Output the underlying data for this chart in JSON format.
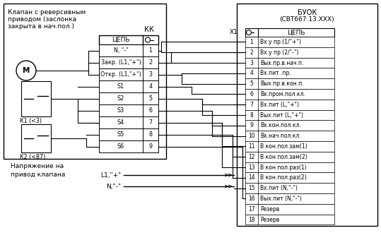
{
  "title_left_line1": "Клапан с реверсивным",
  "title_left_line2": "приводом (заслонка",
  "title_left_line3": "закрыта в нач.пол.)",
  "title_right_line1": "БУОК",
  "title_right_line2": "(СВТ667.13.ХХХ)",
  "kk_label": "КК",
  "x1_label": "Х1",
  "left_header": "ЦЕПЬ",
  "right_header": "ЦЕПЬ",
  "left_rows": [
    [
      "N, \"-\"",
      "1"
    ],
    [
      "Закр. (L1,\"+\")",
      "2"
    ],
    [
      "Откр. (L1,\"+\")",
      "3"
    ],
    [
      "S1",
      "4"
    ],
    [
      "S2",
      "5"
    ],
    [
      "S3",
      "6"
    ],
    [
      "S4",
      "7"
    ],
    [
      "S5",
      "8"
    ],
    [
      "S6",
      "9"
    ]
  ],
  "right_rows": [
    [
      "1",
      "Вх.у пр.(1/\"+\")"
    ],
    [
      "2",
      "Вх.у пр.(2/\"-\")"
    ],
    [
      "3",
      "Вых.пр.в.нач.п."
    ],
    [
      "4",
      "Вх.пит .пр."
    ],
    [
      "5",
      "Вых.пр.в.кон.п."
    ],
    [
      "6",
      "Вх.пром.пол.кл."
    ],
    [
      "7",
      "Вх.пит (L,\"+\")"
    ],
    [
      "8",
      "Вых.пит (L,\"+\")"
    ],
    [
      "9",
      "Вх.кон.пол.кл."
    ],
    [
      "10",
      "Вх.нач.пол.кл."
    ],
    [
      "11",
      "В кон.пол.зам(1)"
    ],
    [
      "12",
      "В кон.пол.зам(2)"
    ],
    [
      "13",
      "В кон.пол.раз(1)"
    ],
    [
      "14",
      "В кон.пол.раз(2)"
    ],
    [
      "15",
      "Вх.пит (N,\"-\")"
    ],
    [
      "16",
      "Вых.пит (N,\"-\")"
    ],
    [
      "17",
      "Резерв"
    ],
    [
      "18",
      "Резерв"
    ]
  ],
  "bottom_label1": "L1,\"+\"",
  "bottom_label2": "N,\"-\"",
  "motor_label": "М",
  "k1_label": "К1 (<3)",
  "k2_label": "К2 (<87)",
  "voltage_line1": "Напряжение на",
  "voltage_line2": "привод клапана",
  "bg_color": "#ffffff",
  "lc": "#000000"
}
